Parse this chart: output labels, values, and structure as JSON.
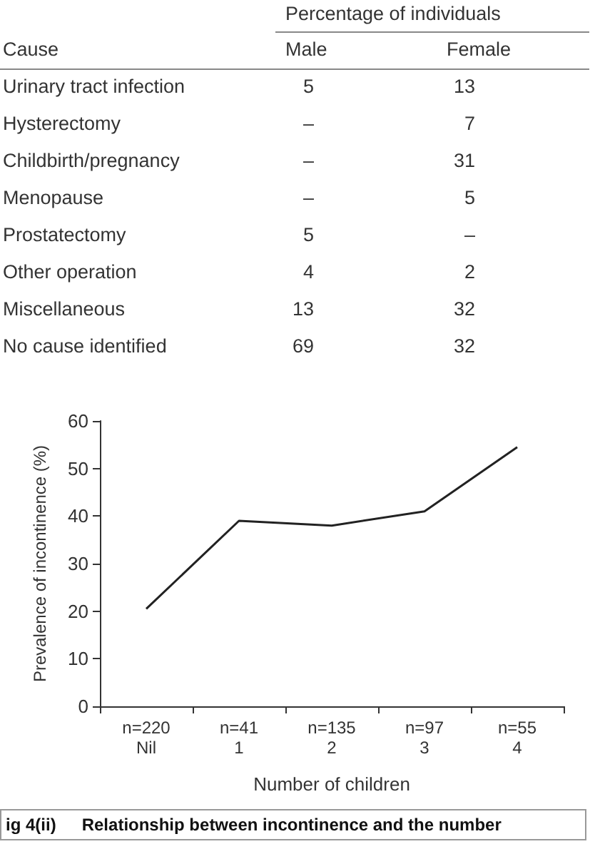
{
  "chart_data": [
    {
      "type": "other",
      "xlabel": "Cause",
      "legend_title": "Percentage of individuals",
      "data_labels": true,
      "annotations": [
        "–"
      ],
      "categories": [
        "Urinary tract infection",
        "Hysterectomy",
        "Childbirth/pregnancy",
        "Menopause",
        "Prostatectomy",
        "Other operation",
        "Miscellaneous",
        "No cause identified"
      ],
      "series": [
        {
          "name": "Male",
          "values": [
            5,
            null,
            null,
            null,
            5,
            4,
            13,
            69
          ]
        },
        {
          "name": "Female",
          "values": [
            13,
            7,
            31,
            5,
            null,
            2,
            32,
            32
          ]
        }
      ]
    },
    {
      "type": "line",
      "categories": [
        "n=220\nNil",
        "n=41\n1",
        "n=135\n2",
        "n=97\n3",
        "n=55\n4"
      ],
      "values": [
        20.5,
        39,
        38,
        41,
        54.5
      ],
      "color": "#222222",
      "marker": "none",
      "line_style": "solid",
      "xlabel": "Number of children",
      "ylabel": "Prevalence of incontinence (%)",
      "ylim": [
        0,
        60
      ],
      "yticks": [
        0,
        10,
        20,
        30,
        40,
        50,
        60
      ],
      "grid": false,
      "annotations": [
        "ig 4(ii)",
        "Relationship between incontinence and the number"
      ]
    }
  ]
}
